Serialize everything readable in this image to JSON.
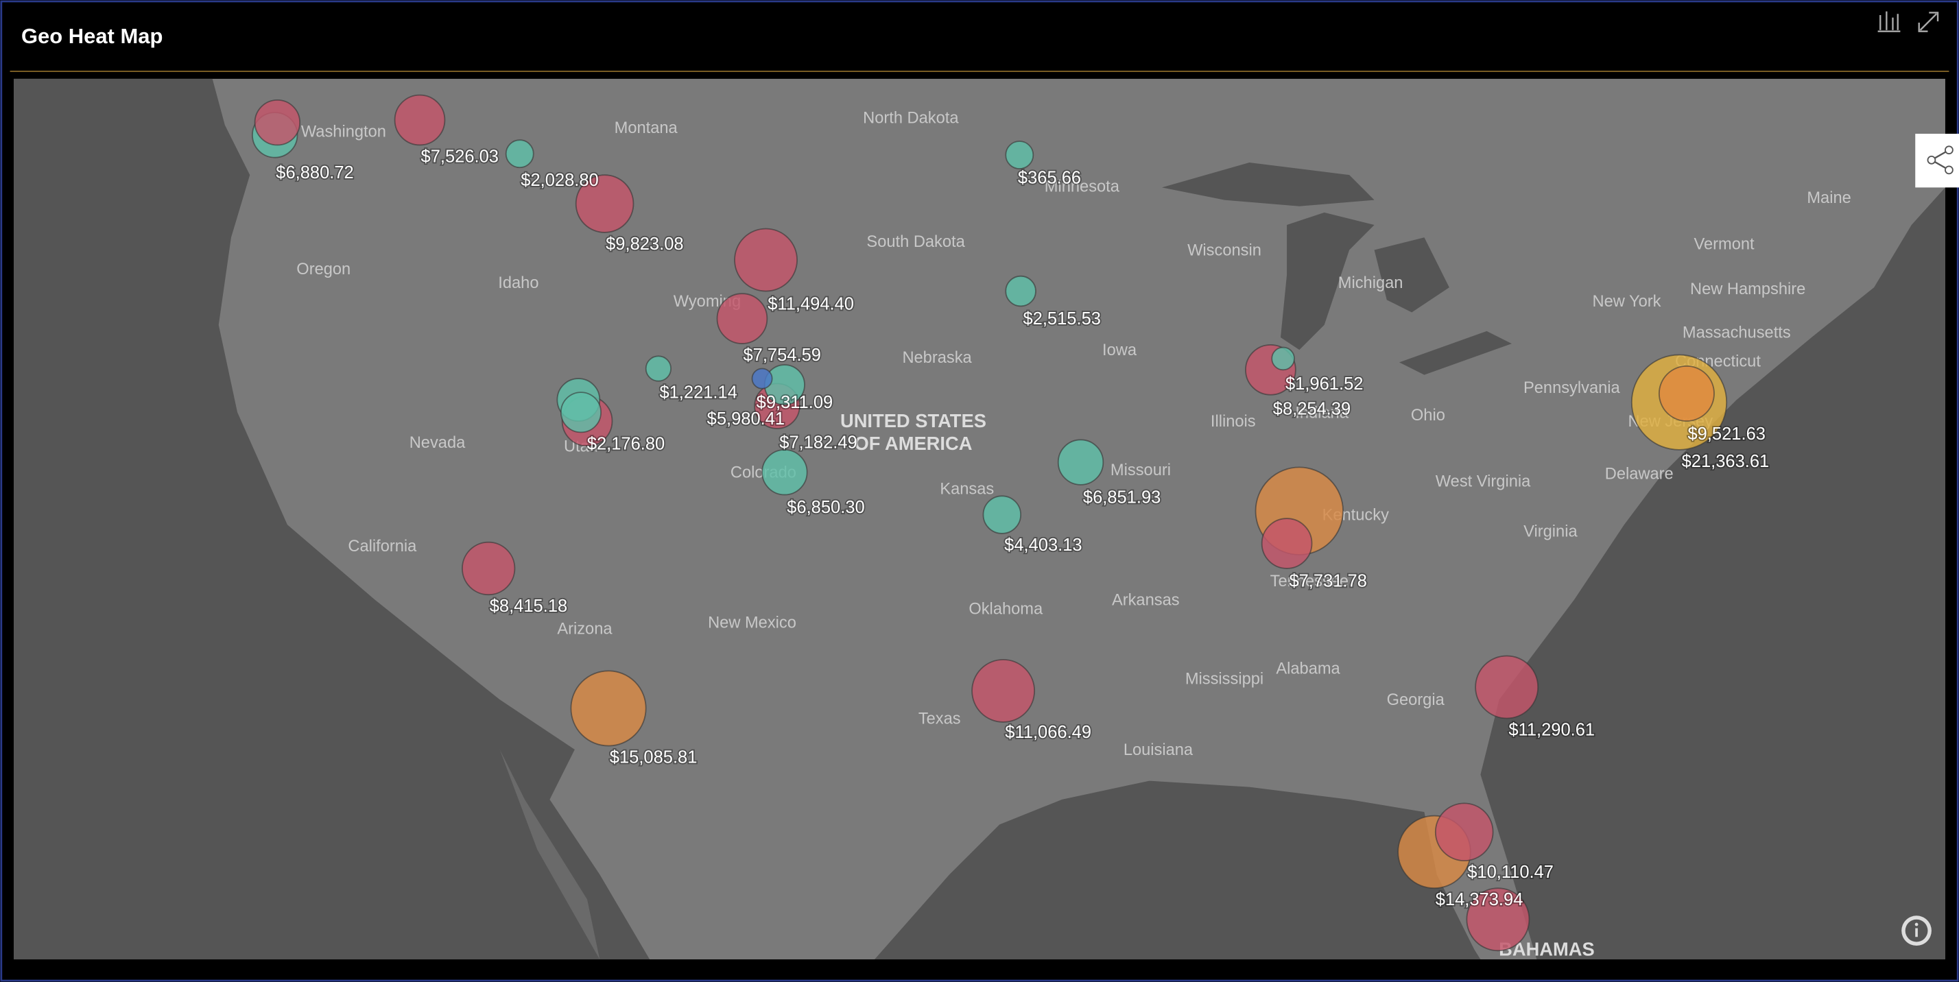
{
  "header": {
    "title": "Geo Heat Map"
  },
  "chart_data": {
    "type": "bubble-map",
    "region_labels": [
      "Washington",
      "Montana",
      "North Dakota",
      "Minnesota",
      "Maine",
      "Oregon",
      "Idaho",
      "Wyoming",
      "South Dakota",
      "Wisconsin",
      "Michigan",
      "Vermont",
      "New Hampshire",
      "New York",
      "Massachusetts",
      "Connecticut",
      "Pennsylvania",
      "New Jersey",
      "Nebraska",
      "Iowa",
      "Illinois",
      "Indiana",
      "Ohio",
      "Nevada",
      "Utah",
      "Colorado",
      "Kansas",
      "Missouri",
      "Kentucky",
      "West Virginia",
      "Delaware",
      "Virginia",
      "California",
      "Arizona",
      "New Mexico",
      "Oklahoma",
      "Arkansas",
      "Tennessee",
      "Mississippi",
      "Alabama",
      "Georgia",
      "Texas",
      "Louisiana"
    ],
    "country_label": [
      "UNITED STATES",
      "OF AMERICA"
    ],
    "other_labels": [
      "BAHAMAS"
    ],
    "points": [
      {
        "value": 6880.72,
        "value_label": "$6,880.72",
        "color": "#5fbfa8"
      },
      {
        "value": 7526.03,
        "value_label": "$7,526.03",
        "color": "#c4566a"
      },
      {
        "value": 2028.8,
        "value_label": "$2,028.80",
        "color": "#5fbfa8"
      },
      {
        "value": 9823.08,
        "value_label": "$9,823.08",
        "color": "#c4566a"
      },
      {
        "value": 11494.4,
        "value_label": "$11,494.40",
        "color": "#c4566a"
      },
      {
        "value": 7754.59,
        "value_label": "$7,754.59",
        "color": "#c4566a"
      },
      {
        "value": 1221.14,
        "value_label": "$1,221.14",
        "color": "#5fbfa8"
      },
      {
        "value": 9311.09,
        "value_label": "$9,311.09",
        "color": "#5fbfa8"
      },
      {
        "value": 5980.41,
        "value_label": "$5,980.41",
        "color": "#4a78c8"
      },
      {
        "value": 7182.49,
        "value_label": "$7,182.49",
        "color": "#c4566a"
      },
      {
        "value": 2176.8,
        "value_label": "$2,176.80",
        "color": "#5fbfa8"
      },
      {
        "value": 6850.3,
        "value_label": "$6,850.30",
        "color": "#5fbfa8"
      },
      {
        "value": 365.66,
        "value_label": "$365.66",
        "color": "#5fbfa8"
      },
      {
        "value": 2515.53,
        "value_label": "$2,515.53",
        "color": "#5fbfa8"
      },
      {
        "value": 6851.93,
        "value_label": "$6,851.93",
        "color": "#5fbfa8"
      },
      {
        "value": 4403.13,
        "value_label": "$4,403.13",
        "color": "#5fbfa8"
      },
      {
        "value": 1961.52,
        "value_label": "$1,961.52",
        "color": "#5fbfa8"
      },
      {
        "value": 8254.39,
        "value_label": "$8,254.39",
        "color": "#c4566a"
      },
      {
        "value": 7731.78,
        "value_label": "$7,731.78",
        "color": "#c4566a"
      },
      {
        "value": 9521.63,
        "value_label": "$9,521.63",
        "color": "#e08a40"
      },
      {
        "value": 21363.61,
        "value_label": "$21,363.61",
        "color": "#e0b040"
      },
      {
        "value": 8415.18,
        "value_label": "$8,415.18",
        "color": "#c4566a"
      },
      {
        "value": 15085.81,
        "value_label": "$15,085.81",
        "color": "#d98a45"
      },
      {
        "value": 11066.49,
        "value_label": "$11,066.49",
        "color": "#c4566a"
      },
      {
        "value": 11290.61,
        "value_label": "$11,290.61",
        "color": "#c4566a"
      },
      {
        "value": 10110.47,
        "value_label": "$10,110.47",
        "color": "#c4566a"
      },
      {
        "value": 14373.94,
        "value_label": "$14,373.94",
        "color": "#d98a45"
      },
      {
        "value": 7000,
        "color": "#c4566a"
      },
      {
        "value": 5000,
        "color": "#5fbfa8"
      },
      {
        "value": 8000,
        "color": "#c4566a"
      },
      {
        "value": 18000,
        "color": "#d98a45"
      },
      {
        "value": 11000,
        "color": "#c4566a"
      }
    ]
  }
}
